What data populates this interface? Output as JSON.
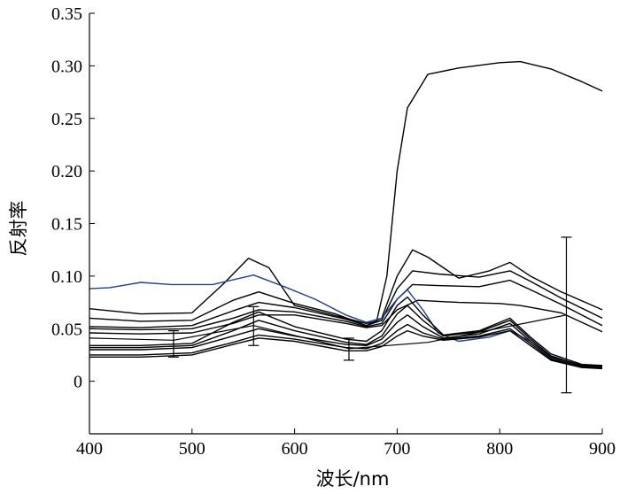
{
  "chart_data": {
    "type": "line",
    "title": "",
    "xlabel": "波长/nm",
    "ylabel": "反射率",
    "xlim": [
      400,
      900
    ],
    "ylim": [
      -0.05,
      0.35
    ],
    "xticks": [
      400,
      500,
      600,
      700,
      800,
      900
    ],
    "yticks": [
      0,
      0.05,
      0.1,
      0.15,
      0.2,
      0.25,
      0.3,
      0.35
    ],
    "ytick_labels": [
      "0",
      "0.05",
      "0.10",
      "0.15",
      "0.20",
      "0.25",
      "0.30",
      "0.35"
    ],
    "grid": false,
    "legend": "none",
    "series": [
      {
        "color": "#000000",
        "points": [
          [
            400,
            0.069
          ],
          [
            450,
            0.064
          ],
          [
            500,
            0.065
          ],
          [
            530,
            0.092
          ],
          [
            555,
            0.117
          ],
          [
            575,
            0.108
          ],
          [
            600,
            0.072
          ],
          [
            650,
            0.06
          ],
          [
            670,
            0.055
          ],
          [
            680,
            0.057
          ],
          [
            690,
            0.1
          ],
          [
            700,
            0.2
          ],
          [
            710,
            0.26
          ],
          [
            730,
            0.292
          ],
          [
            760,
            0.298
          ],
          [
            800,
            0.303
          ],
          [
            820,
            0.304
          ],
          [
            850,
            0.297
          ],
          [
            880,
            0.285
          ],
          [
            900,
            0.276
          ]
        ]
      },
      {
        "color": "#000000",
        "points": [
          [
            400,
            0.06
          ],
          [
            450,
            0.057
          ],
          [
            500,
            0.058
          ],
          [
            540,
            0.077
          ],
          [
            565,
            0.085
          ],
          [
            600,
            0.074
          ],
          [
            640,
            0.064
          ],
          [
            670,
            0.053
          ],
          [
            685,
            0.06
          ],
          [
            700,
            0.1
          ],
          [
            715,
            0.125
          ],
          [
            730,
            0.118
          ],
          [
            760,
            0.098
          ],
          [
            790,
            0.105
          ],
          [
            810,
            0.113
          ],
          [
            830,
            0.1
          ],
          [
            860,
            0.085
          ],
          [
            900,
            0.068
          ]
        ]
      },
      {
        "color": "#000000",
        "points": [
          [
            400,
            0.052
          ],
          [
            450,
            0.051
          ],
          [
            500,
            0.053
          ],
          [
            540,
            0.067
          ],
          [
            565,
            0.075
          ],
          [
            600,
            0.07
          ],
          [
            650,
            0.059
          ],
          [
            670,
            0.053
          ],
          [
            685,
            0.058
          ],
          [
            700,
            0.088
          ],
          [
            715,
            0.105
          ],
          [
            740,
            0.102
          ],
          [
            780,
            0.099
          ],
          [
            810,
            0.105
          ],
          [
            830,
            0.095
          ],
          [
            860,
            0.079
          ],
          [
            900,
            0.06
          ]
        ]
      },
      {
        "color": "#000000",
        "points": [
          [
            400,
            0.05
          ],
          [
            450,
            0.049
          ],
          [
            500,
            0.05
          ],
          [
            540,
            0.06
          ],
          [
            565,
            0.068
          ],
          [
            600,
            0.066
          ],
          [
            650,
            0.057
          ],
          [
            670,
            0.052
          ],
          [
            685,
            0.055
          ],
          [
            700,
            0.078
          ],
          [
            715,
            0.092
          ],
          [
            740,
            0.091
          ],
          [
            780,
            0.09
          ],
          [
            810,
            0.096
          ],
          [
            830,
            0.087
          ],
          [
            860,
            0.073
          ],
          [
            900,
            0.053
          ]
        ]
      },
      {
        "color": "#000000",
        "points": [
          [
            400,
            0.046
          ],
          [
            450,
            0.045
          ],
          [
            500,
            0.046
          ],
          [
            540,
            0.055
          ],
          [
            565,
            0.063
          ],
          [
            600,
            0.063
          ],
          [
            650,
            0.055
          ],
          [
            670,
            0.051
          ],
          [
            685,
            0.053
          ],
          [
            700,
            0.068
          ],
          [
            720,
            0.077
          ],
          [
            760,
            0.075
          ],
          [
            800,
            0.074
          ],
          [
            820,
            0.072
          ],
          [
            860,
            0.065
          ],
          [
            900,
            0.047
          ]
        ]
      },
      {
        "color": "#1f3f8f",
        "points": [
          [
            400,
            0.088
          ],
          [
            420,
            0.089
          ],
          [
            450,
            0.094
          ],
          [
            480,
            0.092
          ],
          [
            520,
            0.092
          ],
          [
            560,
            0.101
          ],
          [
            590,
            0.09
          ],
          [
            620,
            0.078
          ],
          [
            650,
            0.063
          ],
          [
            670,
            0.056
          ],
          [
            685,
            0.06
          ],
          [
            700,
            0.078
          ],
          [
            710,
            0.087
          ],
          [
            725,
            0.068
          ],
          [
            740,
            0.046
          ],
          [
            760,
            0.038
          ],
          [
            790,
            0.042
          ],
          [
            810,
            0.048
          ],
          [
            830,
            0.038
          ],
          [
            850,
            0.022
          ],
          [
            880,
            0.014
          ],
          [
            900,
            0.014
          ]
        ]
      },
      {
        "color": "#000000",
        "points": [
          [
            400,
            0.034
          ],
          [
            450,
            0.034
          ],
          [
            500,
            0.036
          ],
          [
            540,
            0.056
          ],
          [
            565,
            0.066
          ],
          [
            600,
            0.052
          ],
          [
            650,
            0.04
          ],
          [
            670,
            0.038
          ],
          [
            685,
            0.048
          ],
          [
            700,
            0.072
          ],
          [
            710,
            0.08
          ],
          [
            725,
            0.063
          ],
          [
            745,
            0.044
          ],
          [
            780,
            0.048
          ],
          [
            810,
            0.06
          ],
          [
            830,
            0.042
          ],
          [
            850,
            0.026
          ],
          [
            880,
            0.016
          ],
          [
            900,
            0.015
          ]
        ]
      },
      {
        "color": "#000000",
        "points": [
          [
            400,
            0.032
          ],
          [
            450,
            0.032
          ],
          [
            500,
            0.034
          ],
          [
            540,
            0.048
          ],
          [
            565,
            0.058
          ],
          [
            600,
            0.048
          ],
          [
            650,
            0.037
          ],
          [
            670,
            0.035
          ],
          [
            685,
            0.043
          ],
          [
            700,
            0.064
          ],
          [
            710,
            0.072
          ],
          [
            725,
            0.058
          ],
          [
            745,
            0.043
          ],
          [
            780,
            0.047
          ],
          [
            810,
            0.058
          ],
          [
            830,
            0.04
          ],
          [
            850,
            0.024
          ],
          [
            880,
            0.015
          ],
          [
            900,
            0.015
          ]
        ]
      },
      {
        "color": "#000000",
        "points": [
          [
            400,
            0.03
          ],
          [
            450,
            0.03
          ],
          [
            500,
            0.032
          ],
          [
            540,
            0.043
          ],
          [
            565,
            0.05
          ],
          [
            600,
            0.043
          ],
          [
            650,
            0.035
          ],
          [
            670,
            0.034
          ],
          [
            685,
            0.04
          ],
          [
            700,
            0.056
          ],
          [
            710,
            0.063
          ],
          [
            725,
            0.052
          ],
          [
            745,
            0.041
          ],
          [
            780,
            0.045
          ],
          [
            810,
            0.055
          ],
          [
            830,
            0.038
          ],
          [
            850,
            0.023
          ],
          [
            880,
            0.015
          ],
          [
            900,
            0.014
          ]
        ]
      },
      {
        "color": "#000000",
        "points": [
          [
            400,
            0.025
          ],
          [
            450,
            0.025
          ],
          [
            500,
            0.027
          ],
          [
            540,
            0.037
          ],
          [
            565,
            0.044
          ],
          [
            600,
            0.04
          ],
          [
            650,
            0.032
          ],
          [
            670,
            0.031
          ],
          [
            685,
            0.036
          ],
          [
            700,
            0.048
          ],
          [
            710,
            0.054
          ],
          [
            725,
            0.046
          ],
          [
            745,
            0.04
          ],
          [
            780,
            0.043
          ],
          [
            810,
            0.05
          ],
          [
            830,
            0.036
          ],
          [
            850,
            0.021
          ],
          [
            880,
            0.014
          ],
          [
            900,
            0.013
          ]
        ]
      },
      {
        "color": "#000000",
        "points": [
          [
            400,
            0.023
          ],
          [
            450,
            0.023
          ],
          [
            500,
            0.025
          ],
          [
            540,
            0.035
          ],
          [
            565,
            0.041
          ],
          [
            600,
            0.038
          ],
          [
            650,
            0.029
          ],
          [
            670,
            0.029
          ],
          [
            685,
            0.033
          ],
          [
            700,
            0.043
          ],
          [
            710,
            0.048
          ],
          [
            725,
            0.043
          ],
          [
            745,
            0.039
          ],
          [
            780,
            0.042
          ],
          [
            810,
            0.048
          ],
          [
            830,
            0.034
          ],
          [
            850,
            0.02
          ],
          [
            880,
            0.013
          ],
          [
            900,
            0.012
          ]
        ]
      }
    ],
    "mean_line": [
      [
        400,
        0.041
      ],
      [
        482,
        0.039
      ],
      [
        560,
        0.053
      ],
      [
        653,
        0.031
      ],
      [
        730,
        0.037
      ],
      [
        865,
        0.063
      ]
    ],
    "error_bars": [
      {
        "x": 482,
        "low": 0.023,
        "high": 0.048
      },
      {
        "x": 560,
        "low": 0.034,
        "high": 0.071
      },
      {
        "x": 653,
        "low": 0.02,
        "high": 0.041
      },
      {
        "x": 865,
        "low": -0.011,
        "high": 0.137
      }
    ]
  }
}
